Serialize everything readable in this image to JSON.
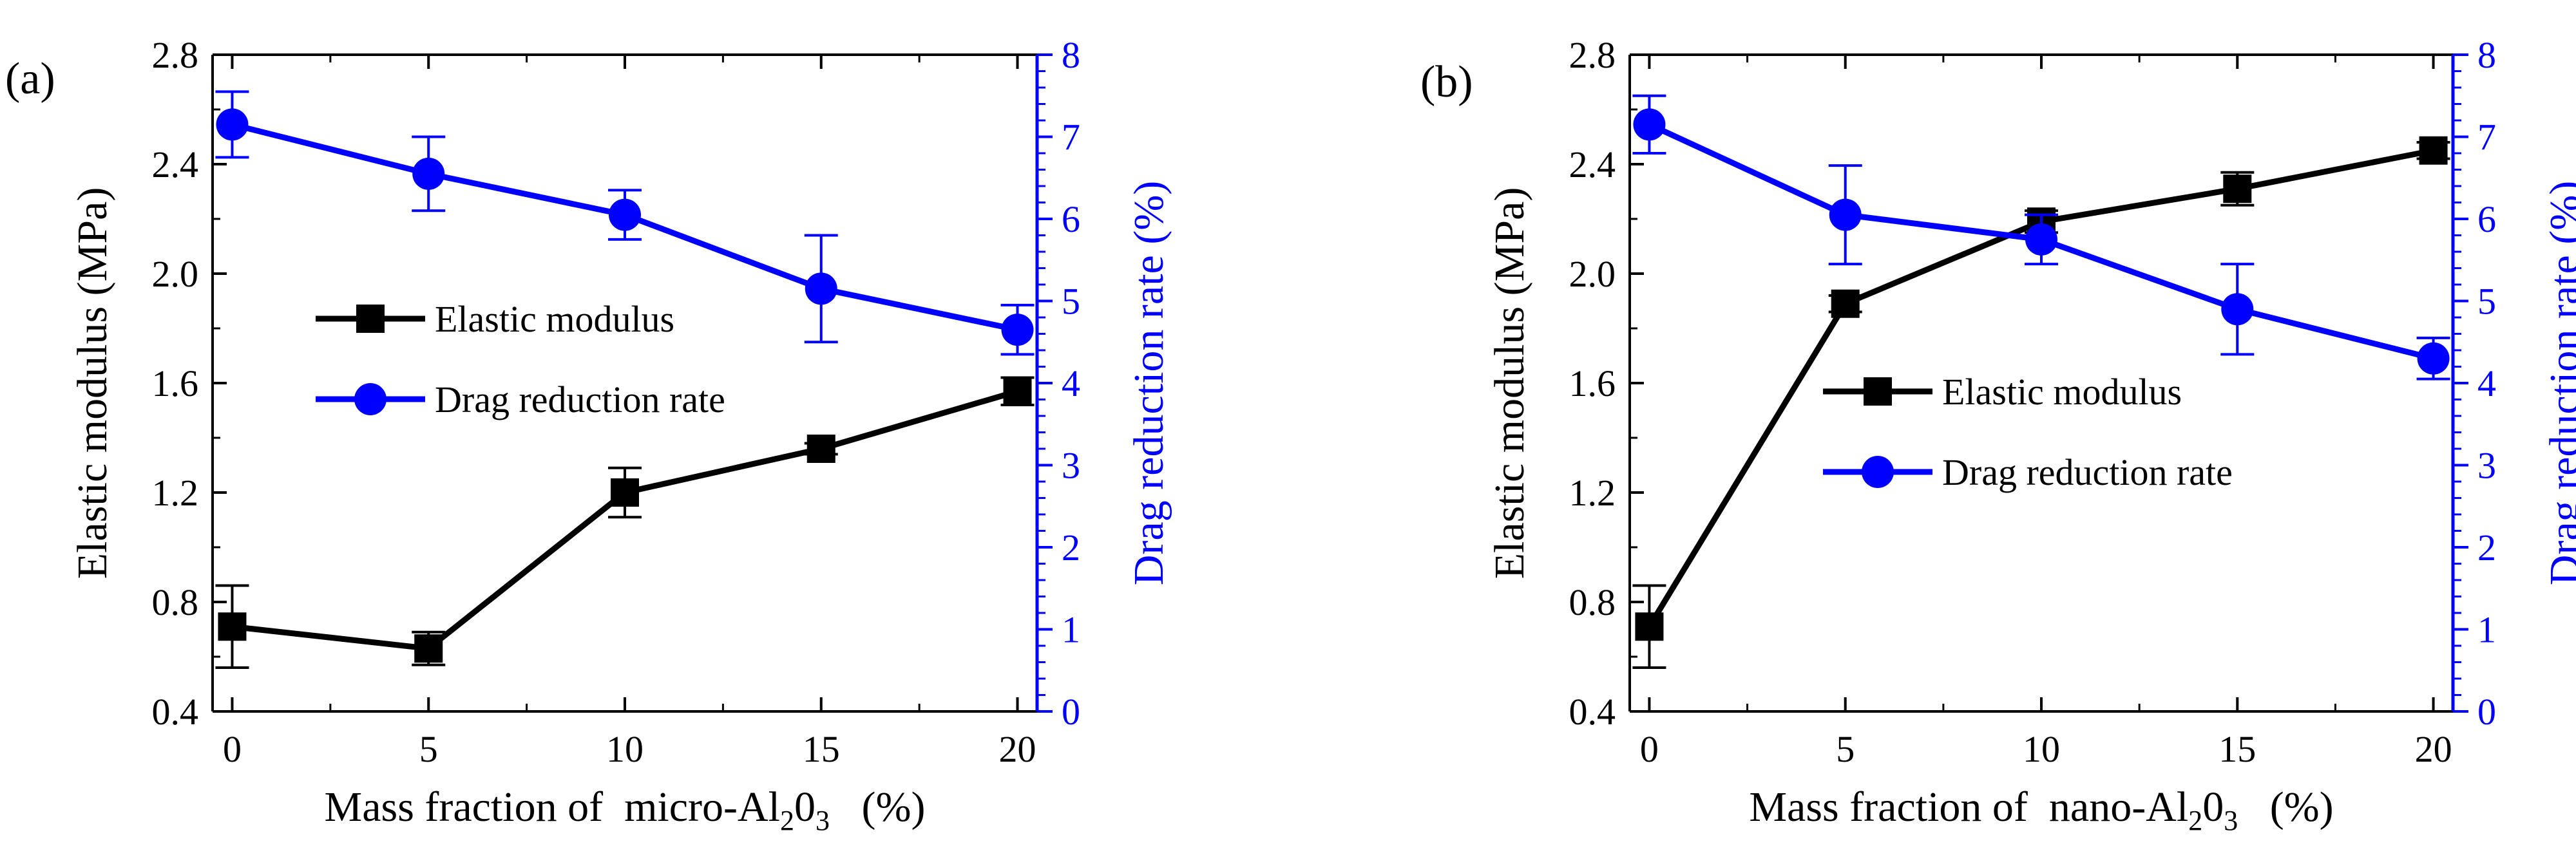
{
  "chart_data": [
    {
      "panel_label": "(a)",
      "type": "line",
      "x": [
        0,
        5,
        10,
        15,
        20
      ],
      "x_ticks": [
        "0",
        "5",
        "10",
        "15",
        "20"
      ],
      "xlabel_parts": [
        "Mass fraction of  micro-Al",
        "2",
        "0",
        "3",
        "   (%)"
      ],
      "xlim": [
        -0.5,
        20.5
      ],
      "ylabel": "Elastic modulus (MPa)",
      "ylim": [
        0.4,
        2.8
      ],
      "y_ticks": [
        "0.4",
        "0.8",
        "1.2",
        "1.6",
        "2.0",
        "2.4",
        "2.8"
      ],
      "y2label": "Drag reduction rate (%)",
      "y2lim": [
        0,
        8
      ],
      "y2_ticks": [
        "0",
        "1",
        "2",
        "3",
        "4",
        "5",
        "6",
        "7",
        "8"
      ],
      "series": [
        {
          "name": "Elastic modulus",
          "axis": "left",
          "color": "#000000",
          "marker": "square",
          "values": [
            0.71,
            0.63,
            1.2,
            1.36,
            1.57
          ],
          "errors": [
            0.15,
            0.06,
            0.09,
            0.02,
            0.05
          ]
        },
        {
          "name": "Drag reduction rate",
          "axis": "right",
          "color": "#0000ff",
          "marker": "circle",
          "values": [
            7.15,
            6.55,
            6.05,
            5.15,
            4.65
          ],
          "errors": [
            0.4,
            0.45,
            0.3,
            0.65,
            0.3
          ]
        }
      ],
      "legend": "center-left"
    },
    {
      "panel_label": "(b)",
      "type": "line",
      "x": [
        0,
        5,
        10,
        15,
        20
      ],
      "x_ticks": [
        "0",
        "5",
        "10",
        "15",
        "20"
      ],
      "xlabel_parts": [
        "Mass fraction of  nano-Al",
        "2",
        "0",
        "3",
        "   (%)"
      ],
      "xlim": [
        -0.5,
        20.5
      ],
      "ylabel": "Elastic modulus (MPa)",
      "ylim": [
        0.4,
        2.8
      ],
      "y_ticks": [
        "0.4",
        "0.8",
        "1.2",
        "1.6",
        "2.0",
        "2.4",
        "2.8"
      ],
      "y2label": "Drag reduction rate (%)",
      "y2lim": [
        0,
        8
      ],
      "y2_ticks": [
        "0",
        "1",
        "2",
        "3",
        "4",
        "5",
        "6",
        "7",
        "8"
      ],
      "series": [
        {
          "name": "Elastic modulus",
          "axis": "left",
          "color": "#000000",
          "marker": "square",
          "values": [
            0.71,
            1.89,
            2.19,
            2.31,
            2.45
          ],
          "errors": [
            0.15,
            0.03,
            0.04,
            0.06,
            0.03
          ]
        },
        {
          "name": "Drag reduction rate",
          "axis": "right",
          "color": "#0000ff",
          "marker": "circle",
          "values": [
            7.15,
            6.05,
            5.75,
            4.9,
            4.3
          ],
          "errors": [
            0.35,
            0.6,
            0.3,
            0.55,
            0.25
          ]
        }
      ],
      "legend": "center-right"
    }
  ]
}
